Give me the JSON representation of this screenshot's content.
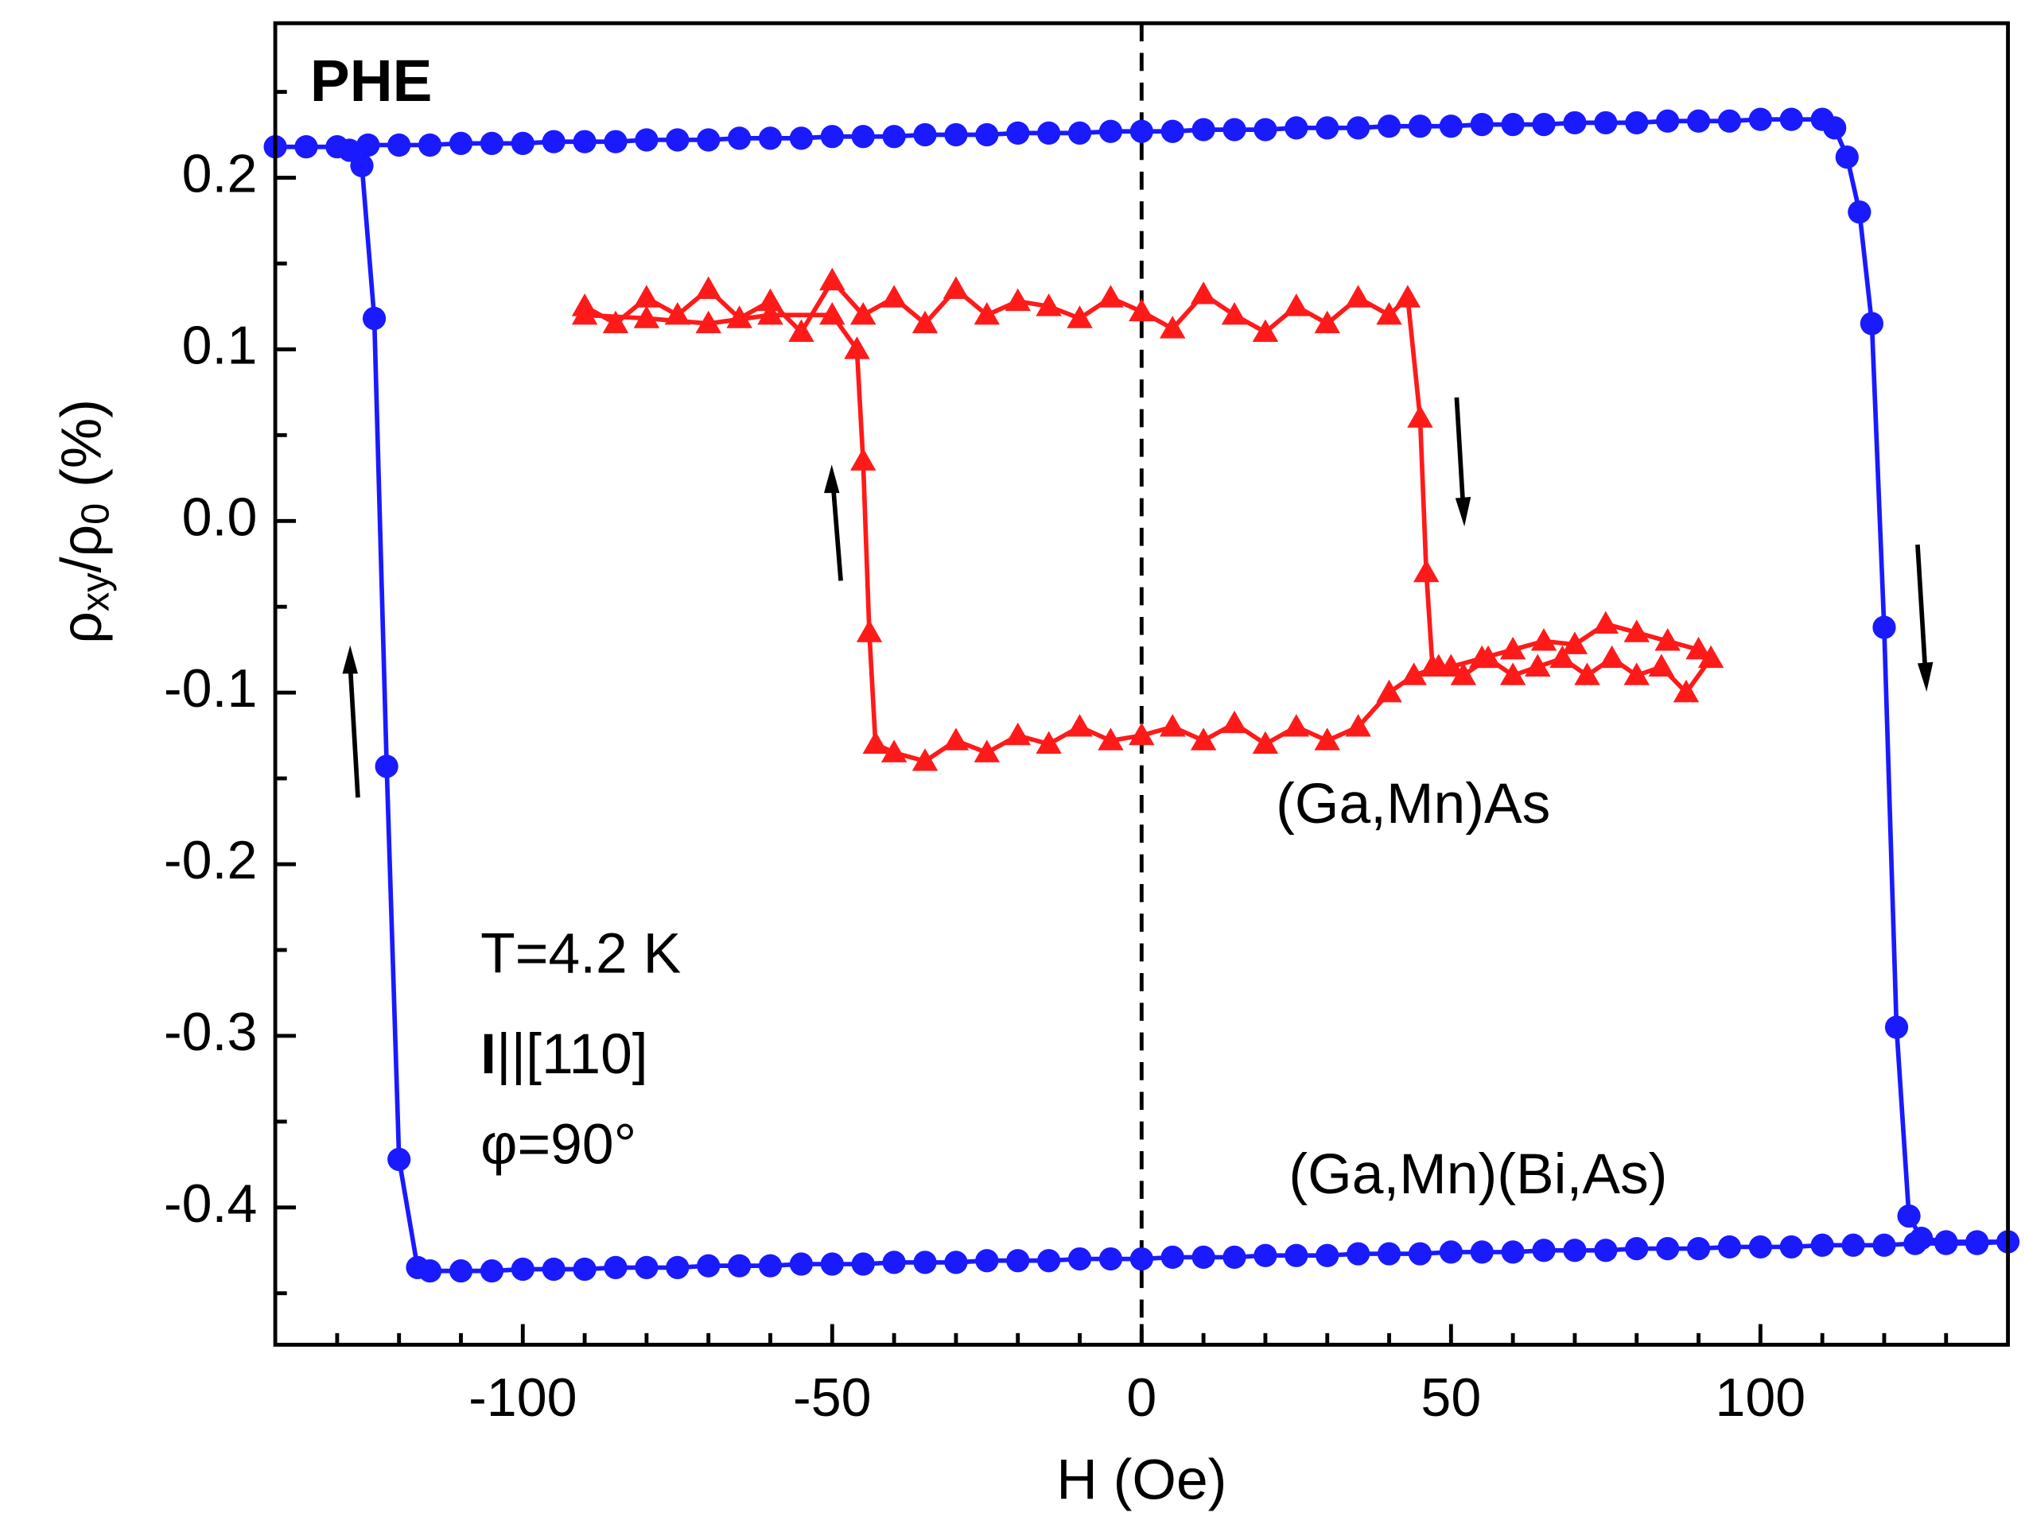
{
  "chart_data": {
    "type": "line",
    "x_label": "H (Oe)",
    "y_label": [
      "ρ",
      "xy",
      "/ρ",
      "0",
      " (%)"
    ],
    "xlim": [
      -140,
      140
    ],
    "ylim": [
      -0.48,
      0.29
    ],
    "xticks": [
      -100,
      -50,
      0,
      50,
      100
    ],
    "yticks": [
      -0.4,
      -0.3,
      -0.2,
      -0.1,
      {
        "value": 0,
        "label": "0.0"
      },
      0.1,
      0.2
    ],
    "xminorticks": [
      -130,
      -120,
      -110,
      -90,
      -80,
      -70,
      -60,
      -40,
      -30,
      -20,
      -10,
      10,
      20,
      30,
      40,
      60,
      70,
      80,
      90,
      110,
      120,
      130
    ],
    "yminorticks": [
      -0.45,
      -0.35,
      -0.25,
      -0.15,
      -0.05,
      0.05,
      0.15,
      0.25
    ],
    "vline": 0,
    "annotations": [
      "PHE",
      "T=4.2 K",
      "I",
      "||[110]",
      "φ=90°",
      "(Ga,Mn)As",
      "(Ga,Mn)(Bi,As)"
    ],
    "series": [
      {
        "name": "(Ga,Mn)(Bi,As)",
        "color": "#1a1aff",
        "marker": "circle",
        "x": [
          -140,
          -135,
          -130,
          -125,
          -120,
          -115,
          -110,
          -105,
          -100,
          -95,
          -90,
          -85,
          -80,
          -75,
          -70,
          -65,
          -60,
          -55,
          -50,
          -45,
          -40,
          -35,
          -30,
          -25,
          -20,
          -15,
          -10,
          -5,
          0,
          5,
          10,
          15,
          20,
          25,
          30,
          35,
          40,
          45,
          50,
          55,
          60,
          65,
          70,
          75,
          80,
          85,
          90,
          95,
          100,
          105,
          110,
          112,
          114,
          116,
          118,
          120,
          122,
          124,
          126,
          130,
          135,
          140,
          135,
          130,
          125,
          120,
          115,
          110,
          105,
          100,
          95,
          90,
          85,
          80,
          75,
          70,
          65,
          60,
          55,
          50,
          45,
          40,
          35,
          30,
          25,
          20,
          15,
          10,
          5,
          0,
          -5,
          -10,
          -15,
          -20,
          -25,
          -30,
          -35,
          -40,
          -45,
          -50,
          -55,
          -60,
          -65,
          -70,
          -75,
          -80,
          -85,
          -90,
          -95,
          -100,
          -105,
          -110,
          -115,
          -117,
          -120,
          -122,
          -124,
          -126,
          -128
        ],
        "values": [
          0.218,
          0.218,
          0.218,
          0.219,
          0.219,
          0.219,
          0.22,
          0.22,
          0.22,
          0.221,
          0.221,
          0.221,
          0.222,
          0.222,
          0.222,
          0.223,
          0.223,
          0.223,
          0.224,
          0.224,
          0.224,
          0.225,
          0.225,
          0.225,
          0.226,
          0.226,
          0.226,
          0.227,
          0.227,
          0.227,
          0.228,
          0.228,
          0.228,
          0.229,
          0.229,
          0.229,
          0.23,
          0.23,
          0.23,
          0.231,
          0.231,
          0.231,
          0.232,
          0.232,
          0.232,
          0.233,
          0.233,
          0.233,
          0.234,
          0.234,
          0.234,
          0.229,
          0.212,
          0.18,
          0.115,
          -0.062,
          -0.295,
          -0.405,
          -0.418,
          -0.42,
          -0.42,
          -0.42,
          -0.421,
          -0.421,
          -0.421,
          -0.422,
          -0.422,
          -0.422,
          -0.423,
          -0.423,
          -0.423,
          -0.424,
          -0.424,
          -0.424,
          -0.425,
          -0.425,
          -0.425,
          -0.426,
          -0.426,
          -0.426,
          -0.427,
          -0.427,
          -0.427,
          -0.428,
          -0.428,
          -0.428,
          -0.429,
          -0.429,
          -0.429,
          -0.43,
          -0.43,
          -0.43,
          -0.431,
          -0.431,
          -0.431,
          -0.432,
          -0.432,
          -0.432,
          -0.433,
          -0.433,
          -0.433,
          -0.434,
          -0.434,
          -0.434,
          -0.435,
          -0.435,
          -0.435,
          -0.436,
          -0.436,
          -0.436,
          -0.437,
          -0.437,
          -0.437,
          -0.435,
          -0.372,
          -0.143,
          0.118,
          0.207,
          0.216
        ]
      },
      {
        "name": "(Ga,Mn)As",
        "color": "#ff1a1a",
        "marker": "triangle",
        "x": [
          -90,
          -85,
          -80,
          -75,
          -70,
          -65,
          -60,
          -55,
          -50,
          -45,
          -40,
          -35,
          -30,
          -25,
          -20,
          -15,
          -10,
          -5,
          0,
          5,
          10,
          15,
          20,
          25,
          30,
          35,
          40,
          43,
          45,
          46,
          47,
          50,
          55,
          60,
          65,
          70,
          75,
          80,
          85,
          90,
          92,
          88,
          84,
          80,
          76,
          72,
          68,
          64,
          60,
          56,
          52,
          48,
          44,
          40,
          35,
          30,
          25,
          20,
          15,
          10,
          5,
          0,
          -5,
          -10,
          -15,
          -20,
          -25,
          -30,
          -35,
          -40,
          -43,
          -44,
          -45,
          -46,
          -50,
          -60,
          -70,
          -80,
          -90
        ],
        "values": [
          0.125,
          0.115,
          0.13,
          0.12,
          0.135,
          0.118,
          0.128,
          0.11,
          0.14,
          0.12,
          0.13,
          0.115,
          0.135,
          0.12,
          0.128,
          0.125,
          0.118,
          0.13,
          0.122,
          0.112,
          0.132,
          0.12,
          0.11,
          0.125,
          0.115,
          0.13,
          0.12,
          0.13,
          0.06,
          -0.03,
          -0.085,
          -0.085,
          -0.08,
          -0.075,
          -0.07,
          -0.072,
          -0.06,
          -0.065,
          -0.07,
          -0.075,
          -0.08,
          -0.1,
          -0.085,
          -0.09,
          -0.08,
          -0.09,
          -0.08,
          -0.085,
          -0.09,
          -0.08,
          -0.09,
          -0.085,
          -0.09,
          -0.1,
          -0.12,
          -0.128,
          -0.12,
          -0.13,
          -0.118,
          -0.128,
          -0.12,
          -0.125,
          -0.128,
          -0.12,
          -0.13,
          -0.125,
          -0.135,
          -0.128,
          -0.14,
          -0.135,
          -0.13,
          -0.065,
          0.035,
          0.1,
          0.12,
          0.12,
          0.115,
          0.118,
          0.12
        ]
      }
    ]
  }
}
